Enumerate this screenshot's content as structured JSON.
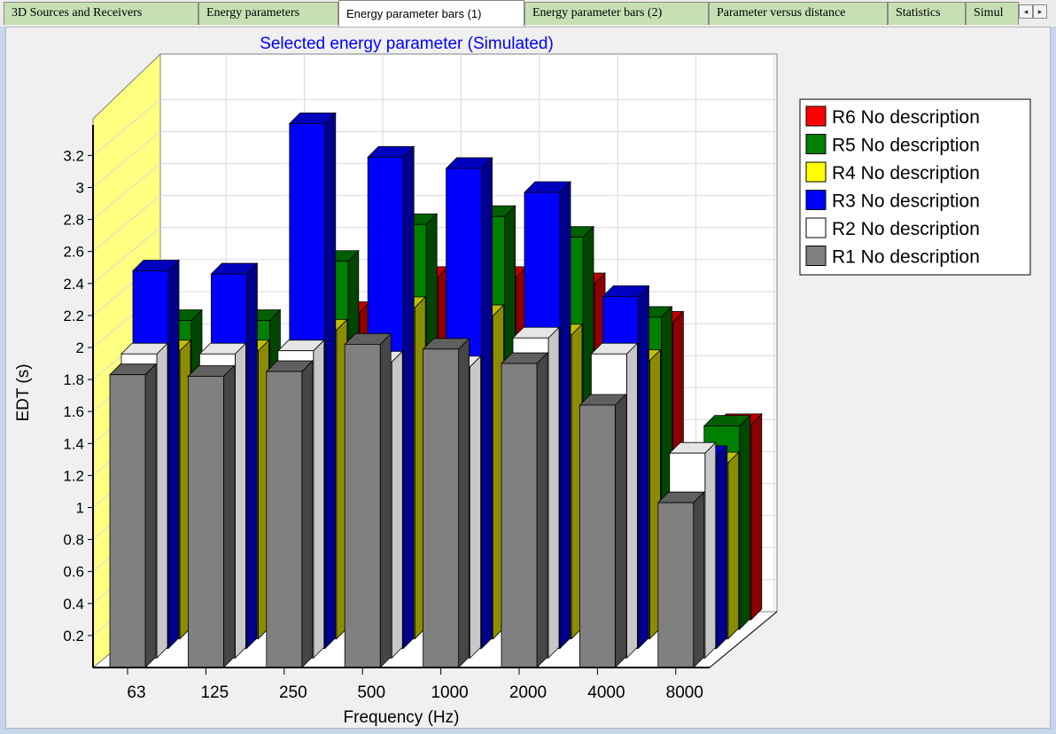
{
  "tabs": [
    {
      "label": "3D Sources and Receivers",
      "active": false
    },
    {
      "label": "Energy parameters",
      "active": false
    },
    {
      "label": "Energy parameter bars (1)",
      "active": true
    },
    {
      "label": "Energy parameter bars (2)",
      "active": false
    },
    {
      "label": "Parameter versus distance",
      "active": false
    },
    {
      "label": "Statistics",
      "active": false
    },
    {
      "label": "Simul",
      "active": false
    }
  ],
  "tab_scroll": {
    "left": "◂",
    "right": "▸"
  },
  "chart_data": {
    "type": "bar",
    "title": "Selected energy parameter (Simulated)",
    "xlabel": "Frequency (Hz)",
    "ylabel": "EDT (s)",
    "categories": [
      "63",
      "125",
      "250",
      "500",
      "1000",
      "2000",
      "4000",
      "8000"
    ],
    "yticks": [
      "0.2",
      "0.4",
      "0.6",
      "0.8",
      "1",
      "1.2",
      "1.4",
      "1.6",
      "1.8",
      "2",
      "2.2",
      "2.4",
      "2.6",
      "2.8",
      "3",
      "3.2"
    ],
    "ylim": [
      0,
      3.3
    ],
    "grid": true,
    "three_d": true,
    "legend_position": "top-right",
    "series": [
      {
        "name": "R1 No description",
        "color": "#808080",
        "values": [
          1.83,
          1.82,
          1.85,
          2.02,
          1.99,
          1.9,
          1.64,
          1.03
        ]
      },
      {
        "name": "R2 No description",
        "color": "#ffffff",
        "values": [
          1.9,
          1.9,
          1.92,
          1.85,
          1.82,
          2.0,
          1.9,
          1.28
        ]
      },
      {
        "name": "R3 No description",
        "color": "#0000ff",
        "values": [
          2.36,
          2.34,
          3.28,
          3.07,
          3.0,
          2.85,
          2.2,
          1.2
        ]
      },
      {
        "name": "R4 No description",
        "color": "#ffff00",
        "values": [
          1.8,
          1.8,
          1.93,
          2.07,
          2.02,
          1.9,
          1.74,
          1.1
        ]
      },
      {
        "name": "R5 No description",
        "color": "#008000",
        "values": [
          1.93,
          1.93,
          2.3,
          2.53,
          2.58,
          2.45,
          1.95,
          1.27
        ]
      },
      {
        "name": "R6 No description",
        "color": "#ff0000",
        "values": [
          1.58,
          1.58,
          1.92,
          2.14,
          2.14,
          2.1,
          1.86,
          1.22
        ]
      }
    ]
  }
}
